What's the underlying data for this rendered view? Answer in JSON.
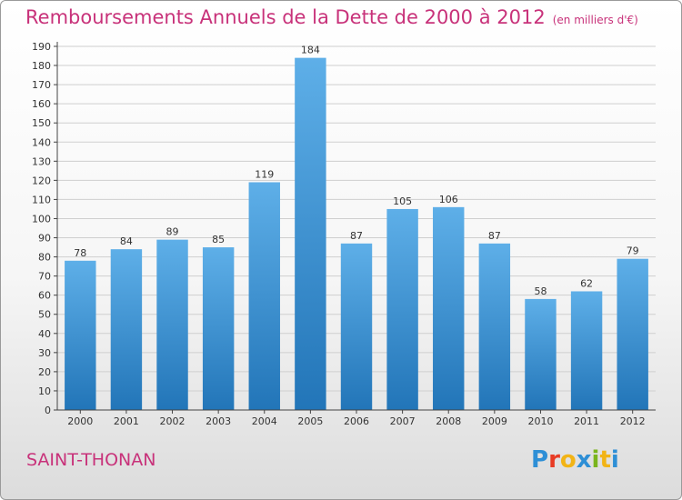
{
  "title": "Remboursements Annuels de la Dette de 2000 à 2012",
  "unit": "(en milliers d'€)",
  "city": "SAINT-THONAN",
  "logo": {
    "text": "Proxiti",
    "letters": [
      "P",
      "r",
      "o",
      "x",
      "i",
      "t",
      "i"
    ],
    "colors": [
      "#2e8fd6",
      "#e83b24",
      "#f2b416",
      "#2e8fd6",
      "#7ab51d",
      "#f2b416",
      "#2e8fd6"
    ]
  },
  "colors": {
    "title": "#c8327a",
    "bar_top": "#5eafe8",
    "bar_bottom": "#2275b8",
    "grid": "#cfcfcf",
    "axis": "#444444"
  },
  "chart_data": {
    "type": "bar",
    "categories": [
      "2000",
      "2001",
      "2002",
      "2003",
      "2004",
      "2005",
      "2006",
      "2007",
      "2008",
      "2009",
      "2010",
      "2011",
      "2012"
    ],
    "values": [
      78,
      84,
      89,
      85,
      119,
      184,
      87,
      105,
      106,
      87,
      58,
      62,
      79
    ],
    "ylim": [
      0,
      190
    ],
    "ytick_step": 10,
    "grid": true,
    "data_labels": true
  }
}
